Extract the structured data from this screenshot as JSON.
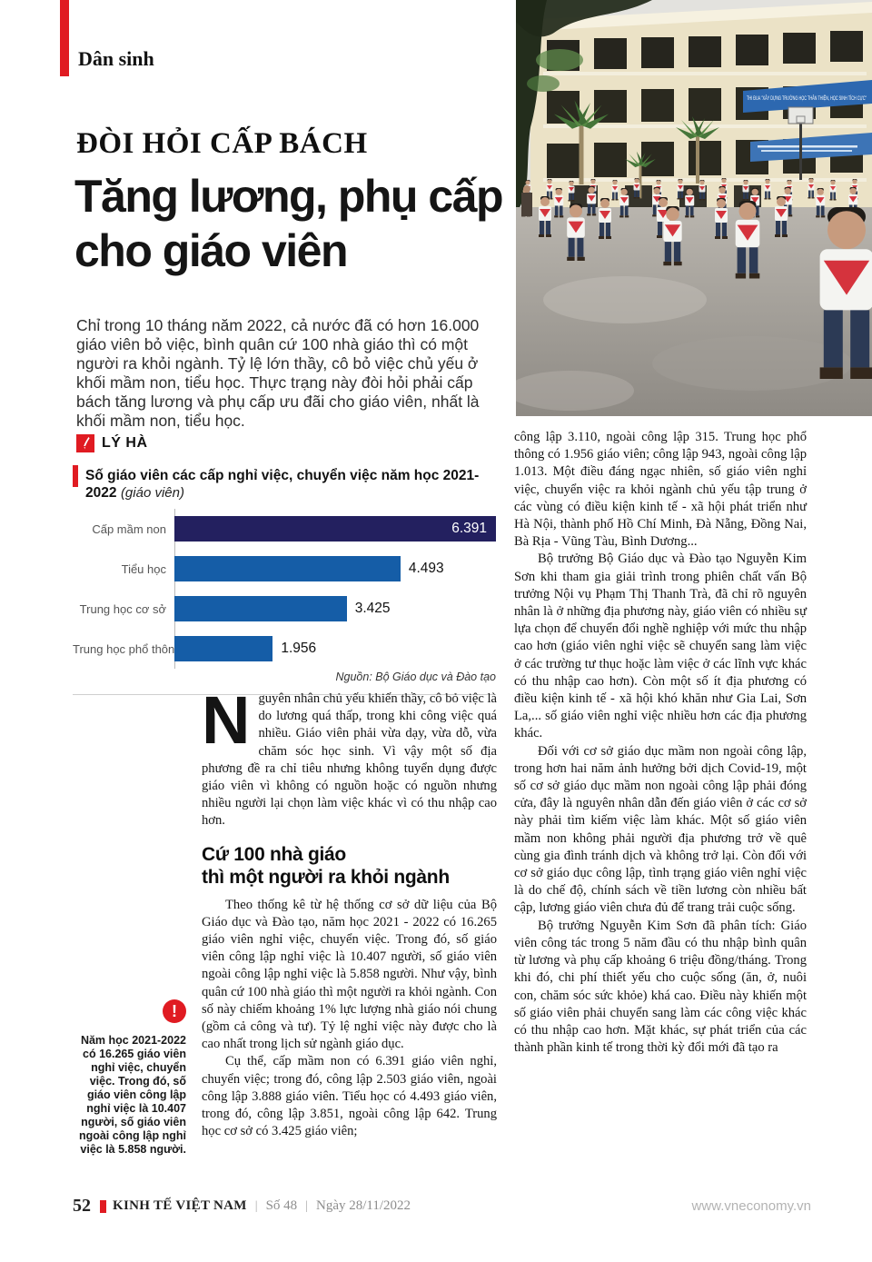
{
  "header": {
    "section": "Dân sinh",
    "kicker": "ĐÒI HỎI CẤP BÁCH",
    "title_line1": "Tăng lương, phụ cấp",
    "title_line2": "cho giáo viên",
    "lead": "Chỉ trong 10 tháng năm 2022, cả nước đã có hơn 16.000 giáo viên bỏ việc, bình quân cứ 100 nhà giáo thì có một người ra khỏi ngành. Tỷ lệ lớn thầy, cô bỏ việc chủ yếu ở khối mầm non, tiểu học. Thực trạng này đòi hỏi phải cấp bách tăng lương và phụ cấp ưu đãi cho giáo viên, nhất là khối mầm non, tiểu học.",
    "author": "LÝ HÀ"
  },
  "photo": {
    "banner_text": "THI ĐUA \"XÂY DỰNG TRƯỜNG HỌC THÂN THIỆN, HỌC SINH TÍCH CỰC\""
  },
  "chart_data": {
    "type": "bar",
    "orientation": "horizontal",
    "title": "Số giáo viên các cấp nghỉ việc, chuyển việc năm học 2021- 2022",
    "unit_label": "(giáo viên)",
    "categories": [
      "Cấp mầm non",
      "Tiểu học",
      "Trung học cơ sở",
      "Trung học phổ thông"
    ],
    "values": [
      6391,
      4493,
      3425,
      1956
    ],
    "value_labels": [
      "6.391",
      "4.493",
      "3.425",
      "1.956"
    ],
    "xlim": [
      0,
      6391
    ],
    "bar_colors": [
      "#23205f",
      "#155da7",
      "#155da7",
      "#155da7"
    ],
    "grid": false,
    "legend": false,
    "source": "Nguồn: Bộ Giáo dục và Đào tạo"
  },
  "article": {
    "dropcap": "N",
    "para1": "guyên nhân chủ yếu khiến thầy, cô bỏ việc là do lương quá thấp, trong khi công việc quá nhiều. Giáo viên phải vừa dạy, vừa dỗ, vừa chăm sóc học sinh. Vì vậy một số địa phương đề ra chỉ tiêu nhưng không tuyển dụng được giáo viên vì không có nguồn hoặc có nguồn nhưng nhiều người lại chọn làm việc khác vì có thu nhập cao hơn.",
    "subhead_line1": "Cứ 100 nhà giáo",
    "subhead_line2": "thì một người ra khỏi ngành",
    "para2": "Theo thống kê từ hệ thống cơ sở dữ liệu của Bộ Giáo dục và Đào tạo, năm học 2021 - 2022 có 16.265 giáo viên nghỉ việc, chuyển việc. Trong đó, số giáo viên công lập nghỉ việc là 10.407 người, số giáo viên ngoài công lập nghỉ việc là 5.858 người. Như vậy, bình quân cứ 100 nhà giáo thì một người ra khỏi ngành. Con số này chiếm khoảng 1% lực lượng nhà giáo nói chung (gồm cả công và tư). Tỷ lệ nghỉ việc này được cho là cao nhất trong lịch sử ngành giáo dục.",
    "para3": "Cụ thể, cấp mầm non có 6.391 giáo viên nghỉ, chuyển việc; trong đó, công lập 2.503 giáo viên, ngoài công lập 3.888 giáo viên. Tiểu học có 4.493 giáo viên, trong đó, công lập 3.851, ngoài công lập 642. Trung học cơ sở có 3.425 giáo viên;",
    "col2_para1": "công lập 3.110, ngoài công lập 315. Trung học phổ thông có 1.956 giáo viên; công lập 943, ngoài công lập 1.013. Một điều đáng ngạc nhiên, số giáo viên nghỉ việc, chuyển việc ra khỏi ngành chủ yếu tập trung ở các vùng có điều kiện kinh tế - xã hội phát triển như Hà Nội, thành phố Hồ Chí Minh, Đà Nẵng, Đồng Nai, Bà Rịa - Vũng Tàu, Bình Dương...",
    "col2_para2": "Bộ trưởng Bộ Giáo dục và Đào tạo Nguyễn Kim Sơn khi tham gia giải trình trong phiên chất vấn Bộ trưởng Nội vụ Phạm Thị Thanh Trà, đã chỉ rõ nguyên nhân là ở những địa phương này, giáo viên có nhiều sự lựa chọn để chuyển đổi nghề nghiệp với mức thu nhập cao hơn (giáo viên nghỉ việc sẽ chuyển sang làm việc ở các trường tư thục hoặc làm việc ở các lĩnh vực khác có thu nhập cao hơn). Còn một số ít địa phương có điều kiện kinh tế - xã hội khó khăn như Gia Lai, Sơn La,... số giáo viên nghỉ việc nhiều hơn các địa phương khác.",
    "col2_para3": "Đối với cơ sở giáo dục mầm non ngoài công lập, trong hơn hai năm ảnh hưởng bởi dịch Covid-19, một số cơ sở giáo dục mầm non ngoài công lập phải đóng cửa, đây là nguyên nhân dẫn đến giáo viên ở các cơ sở này phải tìm kiếm việc làm khác. Một số giáo viên mầm non không phải người địa phương trở về quê cùng gia đình tránh dịch và không trở lại. Còn đối với cơ sở giáo dục công lập, tình trạng giáo viên nghỉ việc là do chế độ, chính sách về tiền lương còn nhiều bất cập, lương giáo viên chưa đủ để trang trải cuộc sống.",
    "col2_para4": "Bộ trưởng Nguyễn Kim Sơn đã phân tích: Giáo viên công tác trong 5 năm đầu có thu nhập bình quân từ lương và phụ cấp khoảng 6 triệu đồng/tháng. Trong khi đó, chi phí thiết yếu cho cuộc sống (ăn, ở, nuôi con, chăm sóc sức khỏe) khá cao. Điều này khiến một số giáo viên phải chuyển sang làm các công việc khác có thu nhập cao hơn. Mặt khác, sự phát triển của các thành phần kinh tế trong thời kỳ đổi mới đã tạo ra",
    "pullquote_icon": "!",
    "pullquote": "Năm học 2021-2022 có 16.265 giáo viên nghỉ việc, chuyển việc. Trong đó, số giáo viên công lập nghỉ việc là 10.407 người, số giáo viên ngoài công lập nghỉ việc là 5.858 người."
  },
  "footer": {
    "page_number": "52",
    "brand": "KINH TẾ VIỆT NAM",
    "separator": "|",
    "issue": "Số 48",
    "date": "Ngày 28/11/2022",
    "website": "www.vneconomy.vn"
  },
  "colors": {
    "accent_red": "#e01b22",
    "bar_navy": "#23205f",
    "bar_blue": "#155da7"
  }
}
